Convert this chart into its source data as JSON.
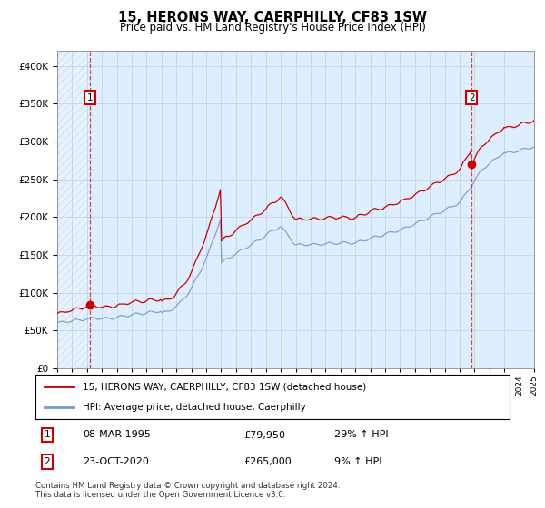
{
  "title": "15, HERONS WAY, CAERPHILLY, CF83 1SW",
  "subtitle": "Price paid vs. HM Land Registry's House Price Index (HPI)",
  "transaction1": {
    "date": "08-MAR-1995",
    "price": 79950,
    "hpi_pct": "29% ↑ HPI",
    "label": "1"
  },
  "transaction2": {
    "date": "23-OCT-2020",
    "price": 265000,
    "hpi_pct": "9% ↑ HPI",
    "label": "2"
  },
  "legend_line1": "15, HERONS WAY, CAERPHILLY, CF83 1SW (detached house)",
  "legend_line2": "HPI: Average price, detached house, Caerphilly",
  "footer": "Contains HM Land Registry data © Crown copyright and database right 2024.\nThis data is licensed under the Open Government Licence v3.0.",
  "red_color": "#cc0000",
  "blue_color": "#7799cc",
  "grid_color": "#c8d8e8",
  "bg_color": "#ddeeff",
  "ylim": [
    0,
    420000
  ],
  "yticks": [
    0,
    50000,
    100000,
    150000,
    200000,
    250000,
    300000,
    350000,
    400000
  ],
  "start_year": 1993,
  "end_year": 2025,
  "transaction1_year": 1995.19,
  "transaction2_year": 2020.81
}
